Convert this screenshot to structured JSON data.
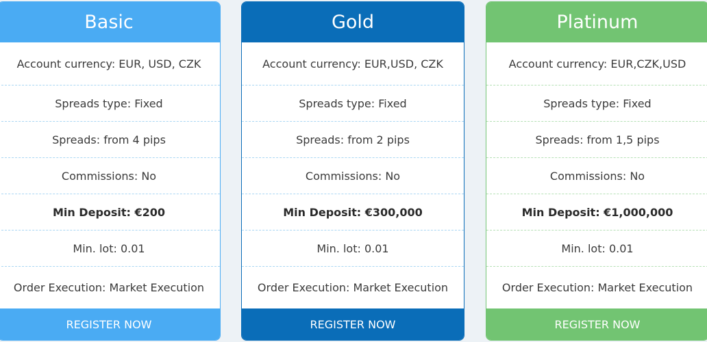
{
  "plans": [
    {
      "name": "Basic",
      "color": "#4aabf3",
      "divider": "#a9d6f3",
      "rows": [
        "Account currency: EUR, USD, CZK",
        "Spreads type: Fixed",
        "Spreads: from 4 pips",
        "Commissions: No",
        "Min Deposit: €200",
        "Min. lot: 0.01",
        "Order Execution: Market Execution"
      ],
      "button": "REGISTER NOW"
    },
    {
      "name": "Gold",
      "color": "#0a6db8",
      "divider": "#a9d6f3",
      "rows": [
        "Account currency: EUR,USD, CZK",
        "Spreads type: Fixed",
        "Spreads: from 2 pips",
        "Commissions: No",
        "Min Deposit: €300,000",
        "Min. lot: 0.01",
        "Order Execution: Market Execution"
      ],
      "button": "REGISTER NOW"
    },
    {
      "name": "Platinum",
      "color": "#72c472",
      "divider": "#b5e0b5",
      "rows": [
        "Account currency: EUR,CZK,USD",
        "Spreads type: Fixed",
        "Spreads: from 1,5 pips",
        "Commissions: No",
        "Min Deposit: €1,000,000",
        "Min. lot: 0.01",
        "Order Execution: Market Execution"
      ],
      "button": "REGISTER NOW"
    }
  ]
}
